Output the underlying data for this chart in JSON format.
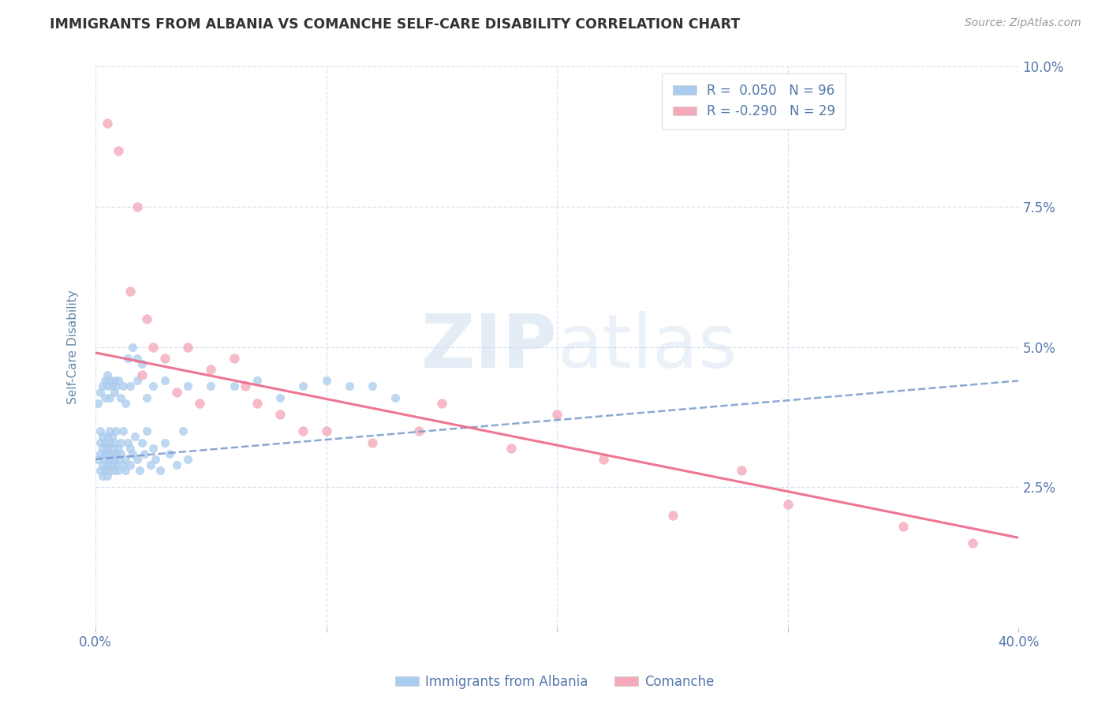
{
  "title": "IMMIGRANTS FROM ALBANIA VS COMANCHE SELF-CARE DISABILITY CORRELATION CHART",
  "source": "Source: ZipAtlas.com",
  "ylabel": "Self-Care Disability",
  "xlim": [
    0.0,
    0.4
  ],
  "ylim": [
    0.0,
    0.1
  ],
  "xticks": [
    0.0,
    0.1,
    0.2,
    0.3,
    0.4
  ],
  "yticks": [
    0.0,
    0.025,
    0.05,
    0.075,
    0.1
  ],
  "xticklabels": [
    "0.0%",
    "",
    "",
    "",
    "40.0%"
  ],
  "yticklabels": [
    "",
    "2.5%",
    "5.0%",
    "7.5%",
    "10.0%"
  ],
  "albania_color": "#aaccee",
  "comanche_color": "#f4aabb",
  "albania_R": 0.05,
  "albania_N": 96,
  "comanche_R": -0.29,
  "comanche_N": 29,
  "trend_albania_color": "#7799cc",
  "trend_comanche_color": "#ee6688",
  "legend_label_albania": "Immigrants from Albania",
  "legend_label_comanche": "Comanche",
  "background_color": "#ffffff",
  "grid_color": "#ccddee",
  "title_color": "#333333",
  "axis_label_color": "#6688aa",
  "tick_color": "#5577aa",
  "source_color": "#999999",
  "trend_alb_y0": 0.03,
  "trend_alb_y1": 0.044,
  "trend_com_y0": 0.049,
  "trend_com_y1": 0.016,
  "albania_x": [
    0.001,
    0.002,
    0.002,
    0.002,
    0.002,
    0.003,
    0.003,
    0.003,
    0.003,
    0.004,
    0.004,
    0.004,
    0.004,
    0.005,
    0.005,
    0.005,
    0.005,
    0.005,
    0.006,
    0.006,
    0.006,
    0.006,
    0.007,
    0.007,
    0.007,
    0.007,
    0.008,
    0.008,
    0.008,
    0.009,
    0.009,
    0.009,
    0.01,
    0.01,
    0.01,
    0.011,
    0.011,
    0.012,
    0.012,
    0.013,
    0.013,
    0.014,
    0.015,
    0.015,
    0.016,
    0.017,
    0.018,
    0.019,
    0.02,
    0.021,
    0.022,
    0.024,
    0.025,
    0.026,
    0.028,
    0.03,
    0.032,
    0.035,
    0.038,
    0.04,
    0.001,
    0.002,
    0.003,
    0.004,
    0.004,
    0.005,
    0.005,
    0.006,
    0.006,
    0.007,
    0.008,
    0.008,
    0.009,
    0.01,
    0.011,
    0.012,
    0.013,
    0.015,
    0.018,
    0.022,
    0.025,
    0.03,
    0.04,
    0.05,
    0.06,
    0.07,
    0.08,
    0.09,
    0.1,
    0.11,
    0.12,
    0.13,
    0.014,
    0.016,
    0.018,
    0.02
  ],
  "albania_y": [
    0.03,
    0.028,
    0.033,
    0.031,
    0.035,
    0.029,
    0.032,
    0.034,
    0.027,
    0.03,
    0.033,
    0.031,
    0.028,
    0.032,
    0.029,
    0.034,
    0.027,
    0.031,
    0.03,
    0.033,
    0.028,
    0.035,
    0.031,
    0.029,
    0.032,
    0.034,
    0.03,
    0.028,
    0.033,
    0.031,
    0.035,
    0.029,
    0.032,
    0.03,
    0.028,
    0.033,
    0.031,
    0.029,
    0.035,
    0.03,
    0.028,
    0.033,
    0.032,
    0.029,
    0.031,
    0.034,
    0.03,
    0.028,
    0.033,
    0.031,
    0.035,
    0.029,
    0.032,
    0.03,
    0.028,
    0.033,
    0.031,
    0.029,
    0.035,
    0.03,
    0.04,
    0.042,
    0.043,
    0.044,
    0.041,
    0.045,
    0.043,
    0.044,
    0.041,
    0.043,
    0.044,
    0.042,
    0.043,
    0.044,
    0.041,
    0.043,
    0.04,
    0.043,
    0.044,
    0.041,
    0.043,
    0.044,
    0.043,
    0.043,
    0.043,
    0.044,
    0.041,
    0.043,
    0.044,
    0.043,
    0.043,
    0.041,
    0.048,
    0.05,
    0.048,
    0.047
  ],
  "comanche_x": [
    0.005,
    0.01,
    0.015,
    0.018,
    0.02,
    0.022,
    0.025,
    0.03,
    0.035,
    0.04,
    0.045,
    0.05,
    0.06,
    0.065,
    0.07,
    0.08,
    0.09,
    0.1,
    0.12,
    0.14,
    0.15,
    0.18,
    0.2,
    0.22,
    0.25,
    0.28,
    0.3,
    0.35,
    0.38
  ],
  "comanche_y": [
    0.09,
    0.085,
    0.06,
    0.075,
    0.045,
    0.055,
    0.05,
    0.048,
    0.042,
    0.05,
    0.04,
    0.046,
    0.048,
    0.043,
    0.04,
    0.038,
    0.035,
    0.035,
    0.033,
    0.035,
    0.04,
    0.032,
    0.038,
    0.03,
    0.02,
    0.028,
    0.022,
    0.018,
    0.015
  ]
}
